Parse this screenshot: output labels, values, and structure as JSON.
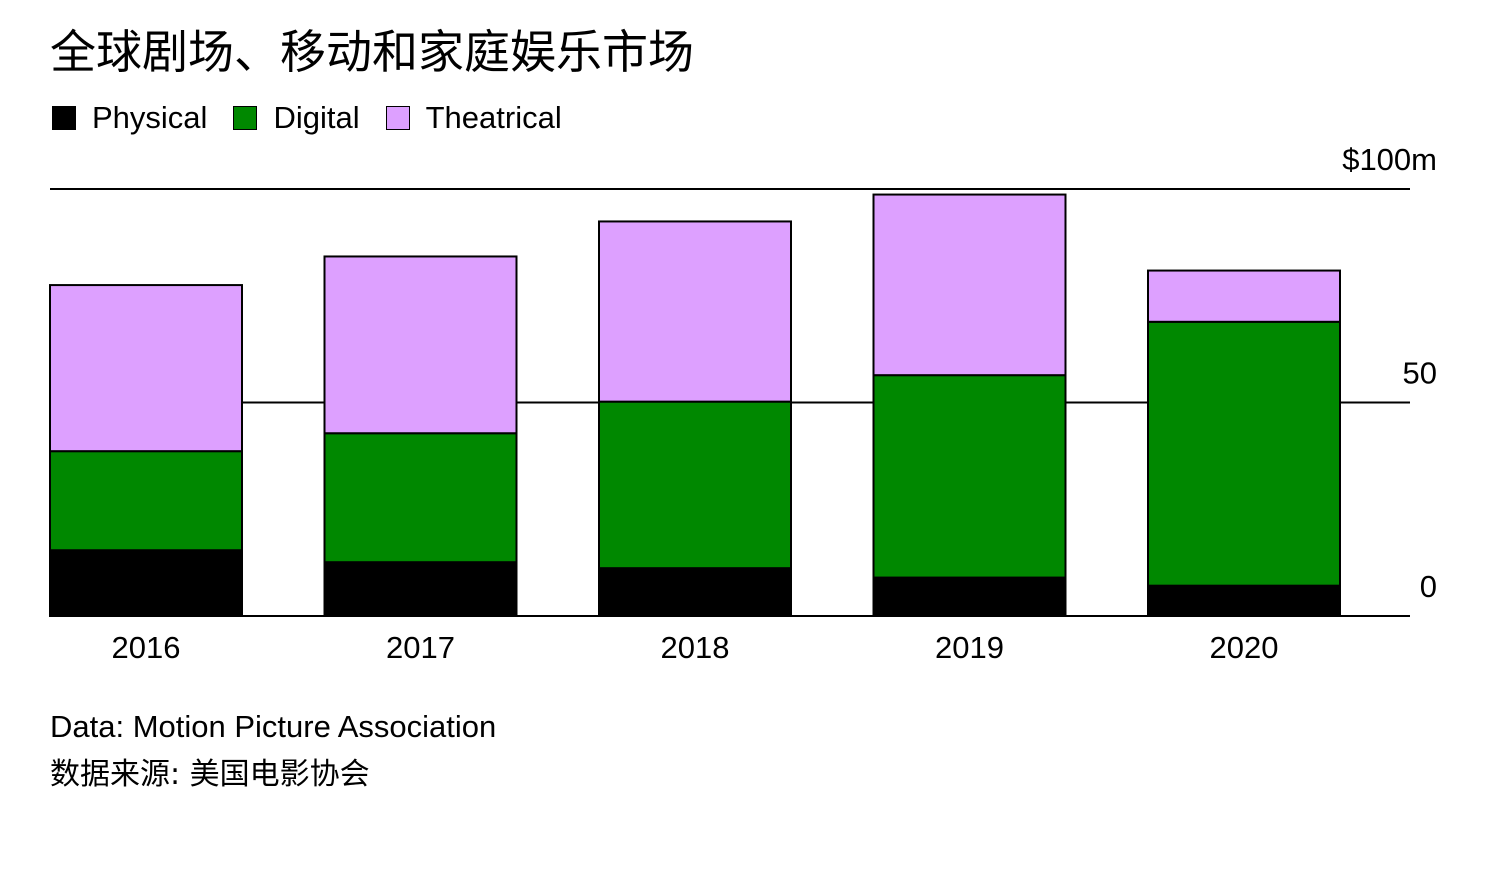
{
  "chart_data": {
    "type": "bar",
    "stacked": true,
    "title": "全球剧场、移动和家庭娱乐市场",
    "categories": [
      "2016",
      "2017",
      "2018",
      "2019",
      "2020"
    ],
    "series": [
      {
        "name": "Physical",
        "color": "#000000",
        "values": [
          15.4,
          12.6,
          11.2,
          9.0,
          7.1
        ]
      },
      {
        "name": "Digital",
        "color": "#008800",
        "values": [
          23.2,
          30.2,
          39.0,
          47.4,
          61.8
        ]
      },
      {
        "name": "Theatrical",
        "color": "#dda0ff",
        "values": [
          38.9,
          41.4,
          42.2,
          42.3,
          12.0
        ]
      }
    ],
    "y_axis": {
      "range": [
        0,
        100
      ],
      "ticks": [
        0,
        50,
        100
      ],
      "tick_labels": [
        "0",
        "50",
        "$100m"
      ],
      "position": "right"
    },
    "grid": true,
    "legend_position": "top-left"
  },
  "source": {
    "en": "Data: Motion Picture Association",
    "zh": "数据来源: 美国电影协会"
  }
}
